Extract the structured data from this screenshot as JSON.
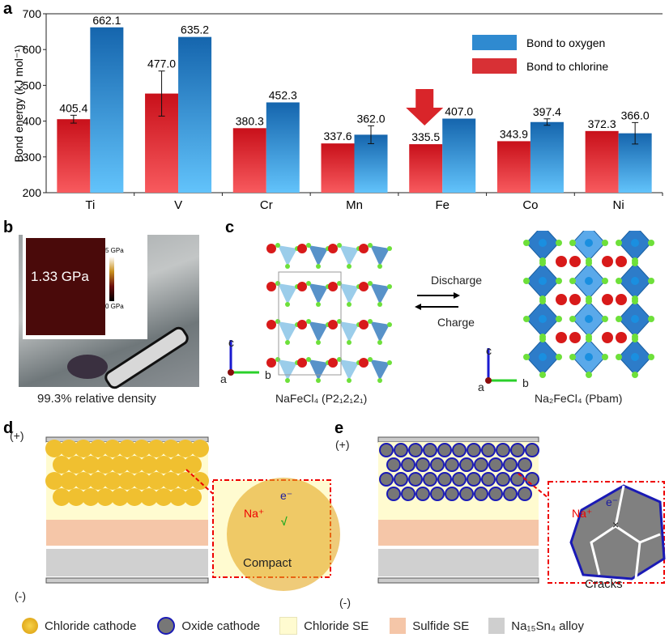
{
  "panels": {
    "a": "a",
    "b": "b",
    "c": "c",
    "d": "d",
    "e": "e"
  },
  "chart_data": {
    "type": "bar",
    "ylabel": "Bond energy (kJ mol⁻¹)",
    "ylim": [
      200,
      700
    ],
    "yticks": [
      200,
      300,
      400,
      500,
      600,
      700
    ],
    "categories": [
      "Ti",
      "V",
      "Cr",
      "Mn",
      "Fe",
      "Co",
      "Ni"
    ],
    "legend_placement": "top-right",
    "highlight": "Fe",
    "series": [
      {
        "name": "Bond to chlorine",
        "color": "#d9252a",
        "values": [
          405.4,
          477.0,
          380.3,
          337.6,
          335.5,
          343.9,
          372.3
        ],
        "errors": [
          11,
          63,
          0,
          0,
          0,
          0,
          0
        ]
      },
      {
        "name": "Bond to oxygen",
        "color": "#1a6fb5",
        "values": [
          662.1,
          635.2,
          452.3,
          362.0,
          407.0,
          397.4,
          366.0
        ],
        "errors": [
          1,
          1,
          1,
          25,
          1,
          9,
          30
        ]
      }
    ]
  },
  "b": {
    "inset_value": "1.33 GPa",
    "scale_max": "5 GPa",
    "scale_min": "0 GPa",
    "caption": "99.3% relative density"
  },
  "c": {
    "forward": "Discharge",
    "reverse": "Charge",
    "left_formula": "NaFeCl₄ (P2₁2₁2₁)",
    "right_formula": "Na₂FeCl₄ (Pbam)",
    "axis_c": "c",
    "axis_a": "a",
    "axis_b": "b"
  },
  "d": {
    "plus": "(+)",
    "minus": "(-)",
    "ion": "Na⁺",
    "electron": "e⁻",
    "check": "√",
    "caption": "Compact"
  },
  "e": {
    "plus": "(+)",
    "minus": "(-)",
    "ion": "Na⁺",
    "electron": "e⁻",
    "cross": "×",
    "caption": "Cracks"
  },
  "legend": [
    "Chloride cathode",
    "Oxide cathode",
    "Chloride SE",
    "Sulfide SE",
    "Na₁₅Sn₄ alloy"
  ]
}
